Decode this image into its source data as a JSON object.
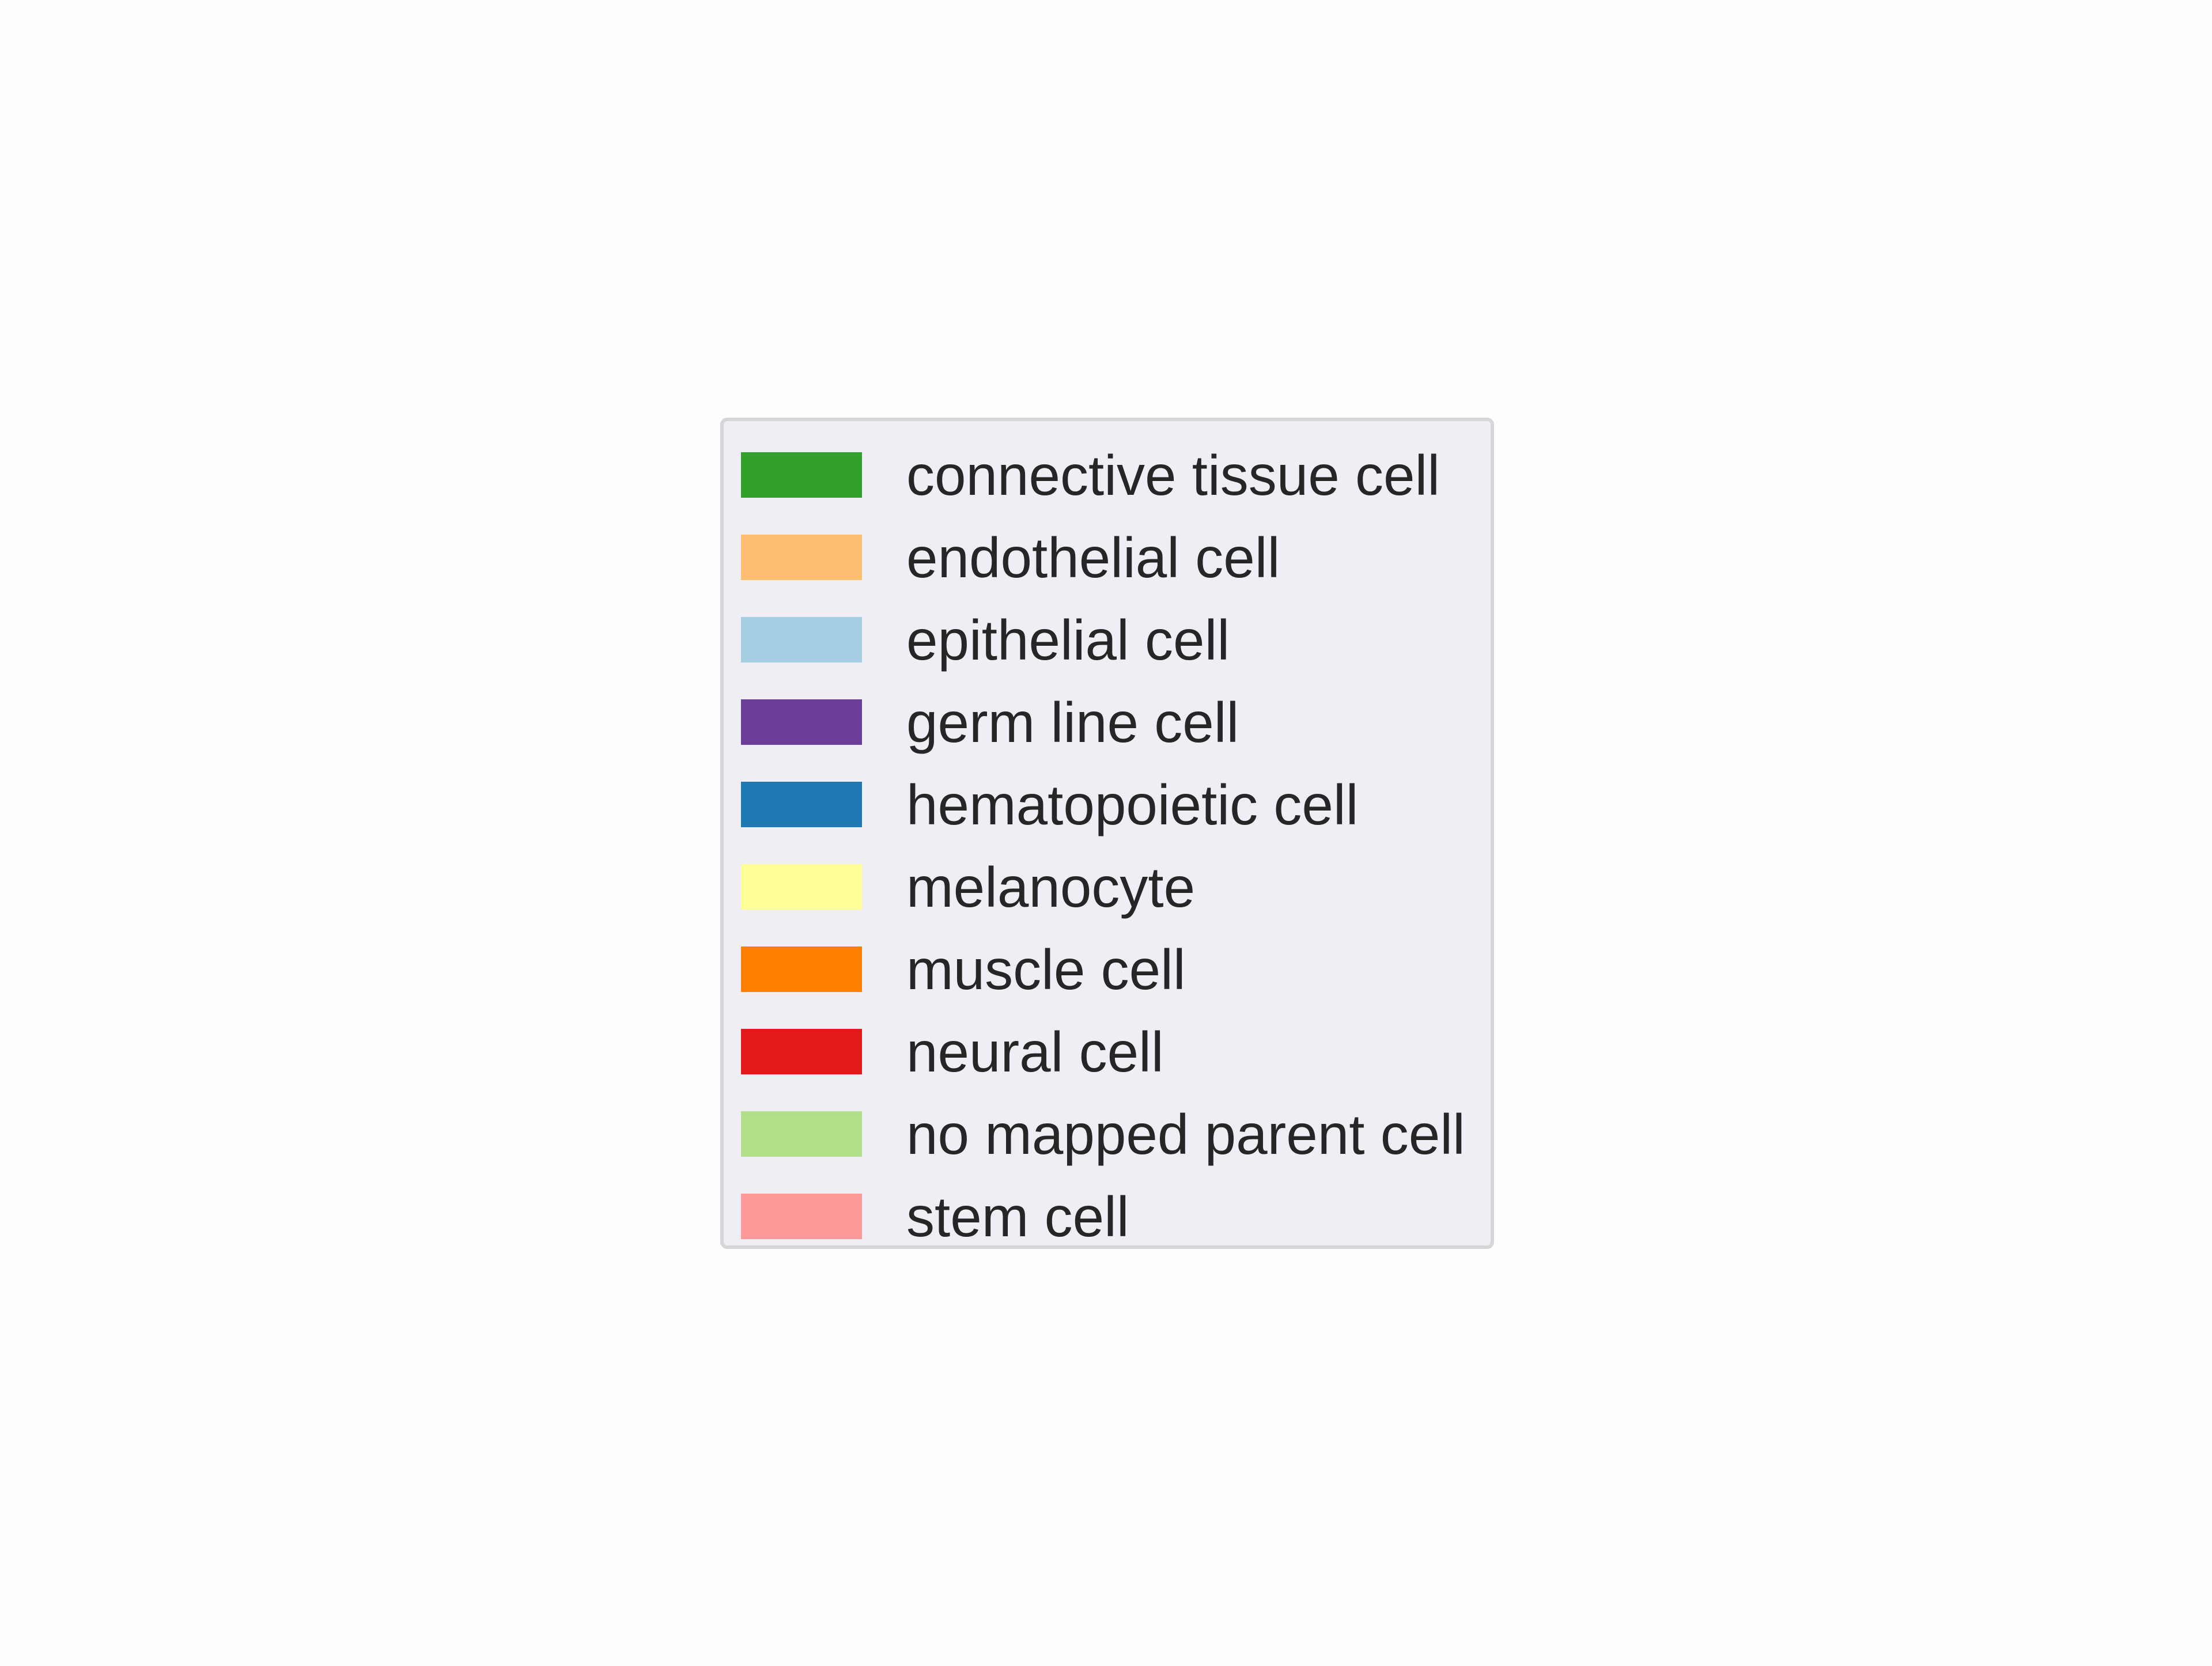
{
  "chart_data": {
    "type": "legend",
    "entries": [
      {
        "label": "connective tissue cell",
        "color": "#33a02c"
      },
      {
        "label": "endothelial cell",
        "color": "#fdbf6f"
      },
      {
        "label": "epithelial cell",
        "color": "#a6cee3"
      },
      {
        "label": "germ line cell",
        "color": "#6a3d9a"
      },
      {
        "label": "hematopoietic cell",
        "color": "#1f78b4"
      },
      {
        "label": "melanocyte",
        "color": "#ffff99"
      },
      {
        "label": "muscle cell",
        "color": "#ff7f00"
      },
      {
        "label": "neural cell",
        "color": "#e31a1c"
      },
      {
        "label": "no mapped parent cell",
        "color": "#b2df8a"
      },
      {
        "label": "stem cell",
        "color": "#fb9a99"
      }
    ]
  }
}
